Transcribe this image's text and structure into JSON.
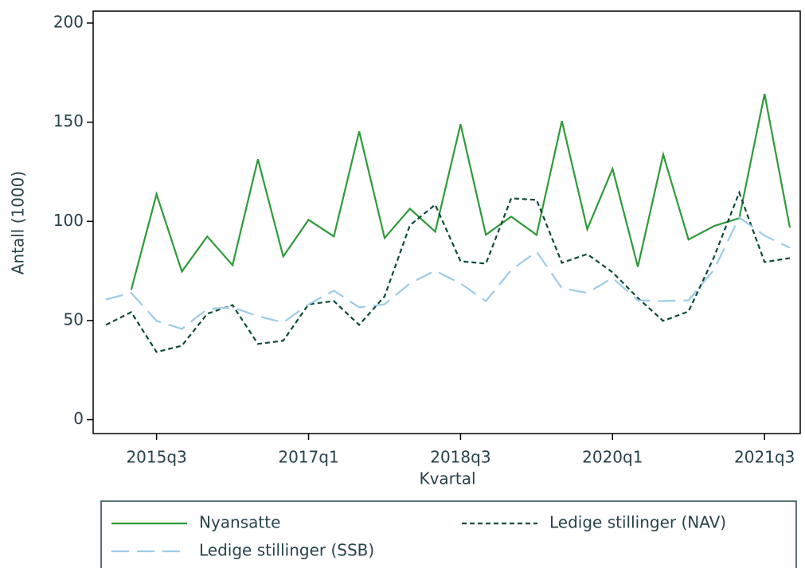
{
  "chart_data": {
    "type": "line",
    "x_label": "Kvartal",
    "y_label": "Antall (1000)",
    "categories": [
      null,
      null,
      "2015q3",
      null,
      null,
      null,
      null,
      null,
      "2017q1",
      null,
      null,
      null,
      null,
      null,
      "2018q3",
      null,
      null,
      null,
      null,
      null,
      "2020q1",
      null,
      null,
      null,
      null,
      null,
      "2021q3",
      null
    ],
    "series": [
      {
        "name": "Nyansatte",
        "color": "#2f9a3a",
        "dash": "solid",
        "values": [
          null,
          65.5,
          113.7,
          74.7,
          92.4,
          77.9,
          131.3,
          82.3,
          100.8,
          92.4,
          145.4,
          91.6,
          106.4,
          94.8,
          149,
          93.2,
          102.4,
          93.2,
          150.6,
          96,
          126.5,
          77.1,
          133.7,
          90.8,
          97.6,
          101.6,
          164.3,
          96.8
        ]
      },
      {
        "name": "Ledige stillinger (NAV)",
        "color": "#0c4a3a",
        "dash": "short",
        "values": [
          47.8,
          54.2,
          34.1,
          37.3,
          53.4,
          57.8,
          38.2,
          39.8,
          58.2,
          59.8,
          47.8,
          62.2,
          98,
          108.4,
          79.9,
          78.7,
          111.6,
          110.8,
          79.1,
          83.5,
          74.3,
          61.4,
          49.8,
          54.6,
          81.9,
          114.5,
          79.5,
          81.5
        ]
      },
      {
        "name": "Ledige stillinger (SSB)",
        "color": "#9dcbe8",
        "dash": "long",
        "values": [
          60.6,
          63.9,
          49.8,
          45.8,
          55.8,
          56.6,
          52.2,
          49,
          58.2,
          65.1,
          56.6,
          58.2,
          68.7,
          75.1,
          68.7,
          59.8,
          75.5,
          84.7,
          66.3,
          63.9,
          71.5,
          60.2,
          59.8,
          60.2,
          75.5,
          102,
          92.8,
          86.7
        ]
      }
    ],
    "ylim": [
      -7,
      206
    ],
    "yticks": [
      0,
      50,
      100,
      150,
      200
    ],
    "grid": false,
    "legend": "bottom"
  }
}
